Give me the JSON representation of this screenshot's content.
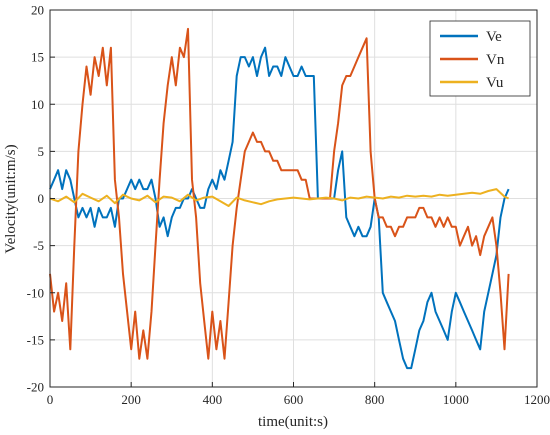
{
  "chart_data": {
    "type": "line",
    "title": "",
    "xlabel": "time(unit:s)",
    "ylabel": "Velocity(unit:m/s)",
    "xlim": [
      0,
      1200
    ],
    "ylim": [
      -20,
      20
    ],
    "xticks": [
      0,
      200,
      400,
      600,
      800,
      1000,
      1200
    ],
    "yticks": [
      -20,
      -15,
      -10,
      -5,
      0,
      5,
      10,
      15,
      20
    ],
    "grid": true,
    "legend_position": "top-right",
    "series": [
      {
        "name": "Ve",
        "color": "#0072BD",
        "x": [
          0,
          10,
          20,
          30,
          40,
          50,
          60,
          70,
          80,
          90,
          100,
          110,
          120,
          130,
          140,
          150,
          160,
          170,
          180,
          190,
          200,
          210,
          220,
          230,
          240,
          250,
          260,
          270,
          280,
          290,
          300,
          310,
          320,
          330,
          340,
          350,
          360,
          370,
          380,
          390,
          400,
          410,
          420,
          430,
          440,
          450,
          460,
          470,
          480,
          490,
          500,
          510,
          520,
          530,
          540,
          550,
          560,
          570,
          580,
          590,
          600,
          610,
          620,
          630,
          640,
          650,
          660,
          670,
          680,
          690,
          700,
          710,
          720,
          730,
          740,
          750,
          760,
          770,
          780,
          790,
          800,
          810,
          820,
          830,
          840,
          850,
          860,
          870,
          880,
          890,
          900,
          910,
          920,
          930,
          940,
          950,
          960,
          970,
          980,
          990,
          1000,
          1010,
          1020,
          1030,
          1040,
          1050,
          1060,
          1070,
          1080,
          1090,
          1100,
          1110,
          1120,
          1130
        ],
        "y": [
          1,
          2,
          3,
          1,
          3,
          2,
          0,
          -2,
          -1,
          -2,
          -1,
          -3,
          -1,
          -2,
          -2,
          -1,
          -3,
          0,
          0,
          1,
          2,
          1,
          2,
          1,
          1,
          2,
          0,
          -3,
          -2,
          -4,
          -2,
          -1,
          -1,
          0,
          0,
          1,
          0,
          -1,
          -1,
          1,
          2,
          1,
          3,
          2,
          4,
          6,
          13,
          15,
          15,
          14,
          15,
          13,
          15,
          16,
          13,
          14,
          14,
          13,
          15,
          14,
          13,
          13,
          14,
          13,
          13,
          13,
          0,
          0,
          0,
          0,
          0,
          3,
          5,
          -2,
          -3,
          -4,
          -3,
          -4,
          -4,
          -3,
          0,
          -2,
          -10,
          -11,
          -12,
          -13,
          -15,
          -17,
          -18,
          -18,
          -16,
          -14,
          -13,
          -11,
          -10,
          -12,
          -13,
          -14,
          -15,
          -12,
          -10,
          -11,
          -12,
          -13,
          -14,
          -15,
          -16,
          -12,
          -10,
          -8,
          -6,
          -2,
          0,
          1
        ]
      },
      {
        "name": "Vn",
        "color": "#D95319",
        "x": [
          0,
          10,
          20,
          30,
          40,
          50,
          60,
          70,
          80,
          90,
          100,
          110,
          120,
          130,
          140,
          150,
          160,
          170,
          180,
          190,
          200,
          210,
          220,
          230,
          240,
          250,
          260,
          270,
          280,
          290,
          300,
          310,
          320,
          330,
          340,
          350,
          360,
          370,
          380,
          390,
          400,
          410,
          420,
          430,
          440,
          450,
          460,
          470,
          480,
          490,
          500,
          510,
          520,
          530,
          540,
          550,
          560,
          570,
          580,
          590,
          600,
          610,
          620,
          630,
          640,
          650,
          660,
          670,
          680,
          690,
          700,
          710,
          720,
          730,
          740,
          750,
          760,
          770,
          780,
          790,
          800,
          810,
          820,
          830,
          840,
          850,
          860,
          870,
          880,
          890,
          900,
          910,
          920,
          930,
          940,
          950,
          960,
          970,
          980,
          990,
          1000,
          1010,
          1020,
          1030,
          1040,
          1050,
          1060,
          1070,
          1080,
          1090,
          1100,
          1110,
          1120,
          1130
        ],
        "y": [
          -8,
          -12,
          -10,
          -13,
          -9,
          -16,
          -5,
          5,
          10,
          14,
          11,
          15,
          13,
          16,
          12,
          16,
          2,
          -2,
          -8,
          -12,
          -16,
          -12,
          -17,
          -14,
          -17,
          -12,
          -5,
          2,
          8,
          12,
          15,
          12,
          16,
          15,
          18,
          2,
          -2,
          -9,
          -13,
          -17,
          -12,
          -16,
          -13,
          -17,
          -11,
          -5,
          -1,
          2,
          5,
          6,
          7,
          6,
          6,
          5,
          5,
          4,
          4,
          3,
          3,
          3,
          3,
          3,
          2,
          2,
          0,
          0,
          0,
          0,
          0,
          0,
          5,
          8,
          12,
          13,
          13,
          14,
          15,
          16,
          17,
          5,
          0,
          -2,
          -2,
          -3,
          -3,
          -4,
          -3,
          -3,
          -2,
          -2,
          -2,
          -1,
          -1,
          -2,
          -2,
          -3,
          -2,
          -3,
          -2,
          -3,
          -3,
          -5,
          -4,
          -3,
          -5,
          -4,
          -6,
          -4,
          -3,
          -2,
          -5,
          -10,
          -16,
          -8
        ]
      },
      {
        "name": "Vu",
        "color": "#EDB120",
        "x": [
          0,
          20,
          40,
          60,
          80,
          100,
          120,
          140,
          160,
          180,
          200,
          220,
          240,
          260,
          280,
          300,
          320,
          340,
          360,
          380,
          400,
          420,
          440,
          460,
          480,
          500,
          520,
          540,
          560,
          580,
          600,
          620,
          640,
          660,
          680,
          700,
          720,
          740,
          760,
          780,
          800,
          820,
          840,
          860,
          880,
          900,
          920,
          940,
          960,
          980,
          1000,
          1020,
          1040,
          1060,
          1080,
          1100,
          1120,
          1130
        ],
        "y": [
          0,
          -0.3,
          0.2,
          -0.4,
          0.5,
          0.1,
          -0.3,
          0.3,
          -0.5,
          0.4,
          0,
          -0.2,
          0.3,
          -0.4,
          0.2,
          0.1,
          -0.3,
          0.4,
          -0.2,
          0.1,
          0.2,
          -0.3,
          -0.8,
          0.1,
          -0.2,
          -0.4,
          -0.6,
          -0.3,
          -0.1,
          0,
          0.1,
          0,
          -0.1,
          0,
          0.1,
          0,
          -0.2,
          0.1,
          0,
          0.2,
          0.1,
          0,
          0.2,
          0.1,
          0.3,
          0.2,
          0.3,
          0.2,
          0.4,
          0.3,
          0.4,
          0.5,
          0.6,
          0.5,
          0.8,
          1.0,
          0.2,
          0
        ]
      }
    ]
  }
}
